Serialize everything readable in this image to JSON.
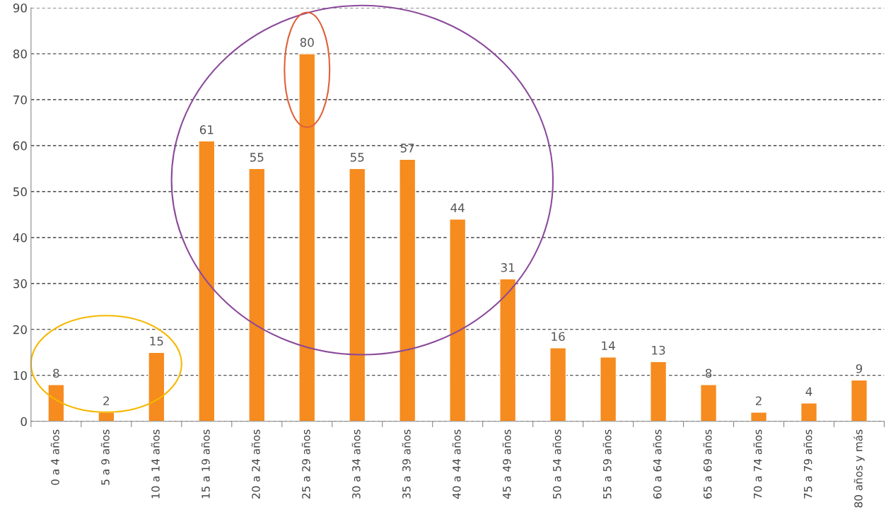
{
  "chart_data": {
    "type": "bar",
    "categories": [
      "0 a 4 años",
      "5 a 9 años",
      "10 a 14 años",
      "15 a 19 años",
      "20 a 24 años",
      "25 a 29 años",
      "30 a 34 años",
      "35 a 39 años",
      "40 a 44 años",
      "45 a 49 años",
      "50 a 54 años",
      "55 a 59 años",
      "60 a 64 años",
      "65 a 69 años",
      "70 a 74 años",
      "75 a 79 años",
      "80 años y más"
    ],
    "values": [
      8,
      2,
      15,
      61,
      55,
      80,
      55,
      57,
      44,
      31,
      16,
      14,
      13,
      8,
      2,
      4,
      9
    ],
    "color": "#f68b1f",
    "ylim": [
      0,
      90
    ],
    "yticks": [
      0,
      10,
      20,
      30,
      40,
      50,
      60,
      70,
      80,
      90
    ],
    "grid": "y",
    "data_labels": true
  }
}
